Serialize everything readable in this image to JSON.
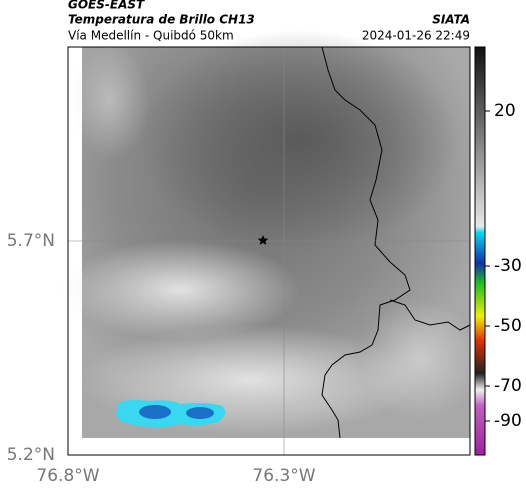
{
  "header": {
    "source": "GOES-EAST",
    "title": "Temperatura de Brillo CH13",
    "subtitle": "Vía Medellín - Quibdó 50km",
    "org": "SIATA",
    "datetime": "2024-01-26 22:49"
  },
  "map": {
    "lat_labels": [
      "5.7°N",
      "5.2°N"
    ],
    "lon_labels": [
      "76.8°W",
      "76.3°W"
    ]
  },
  "colorbar": {
    "ticks": [
      20,
      -30,
      -50,
      -70,
      -90
    ]
  }
}
